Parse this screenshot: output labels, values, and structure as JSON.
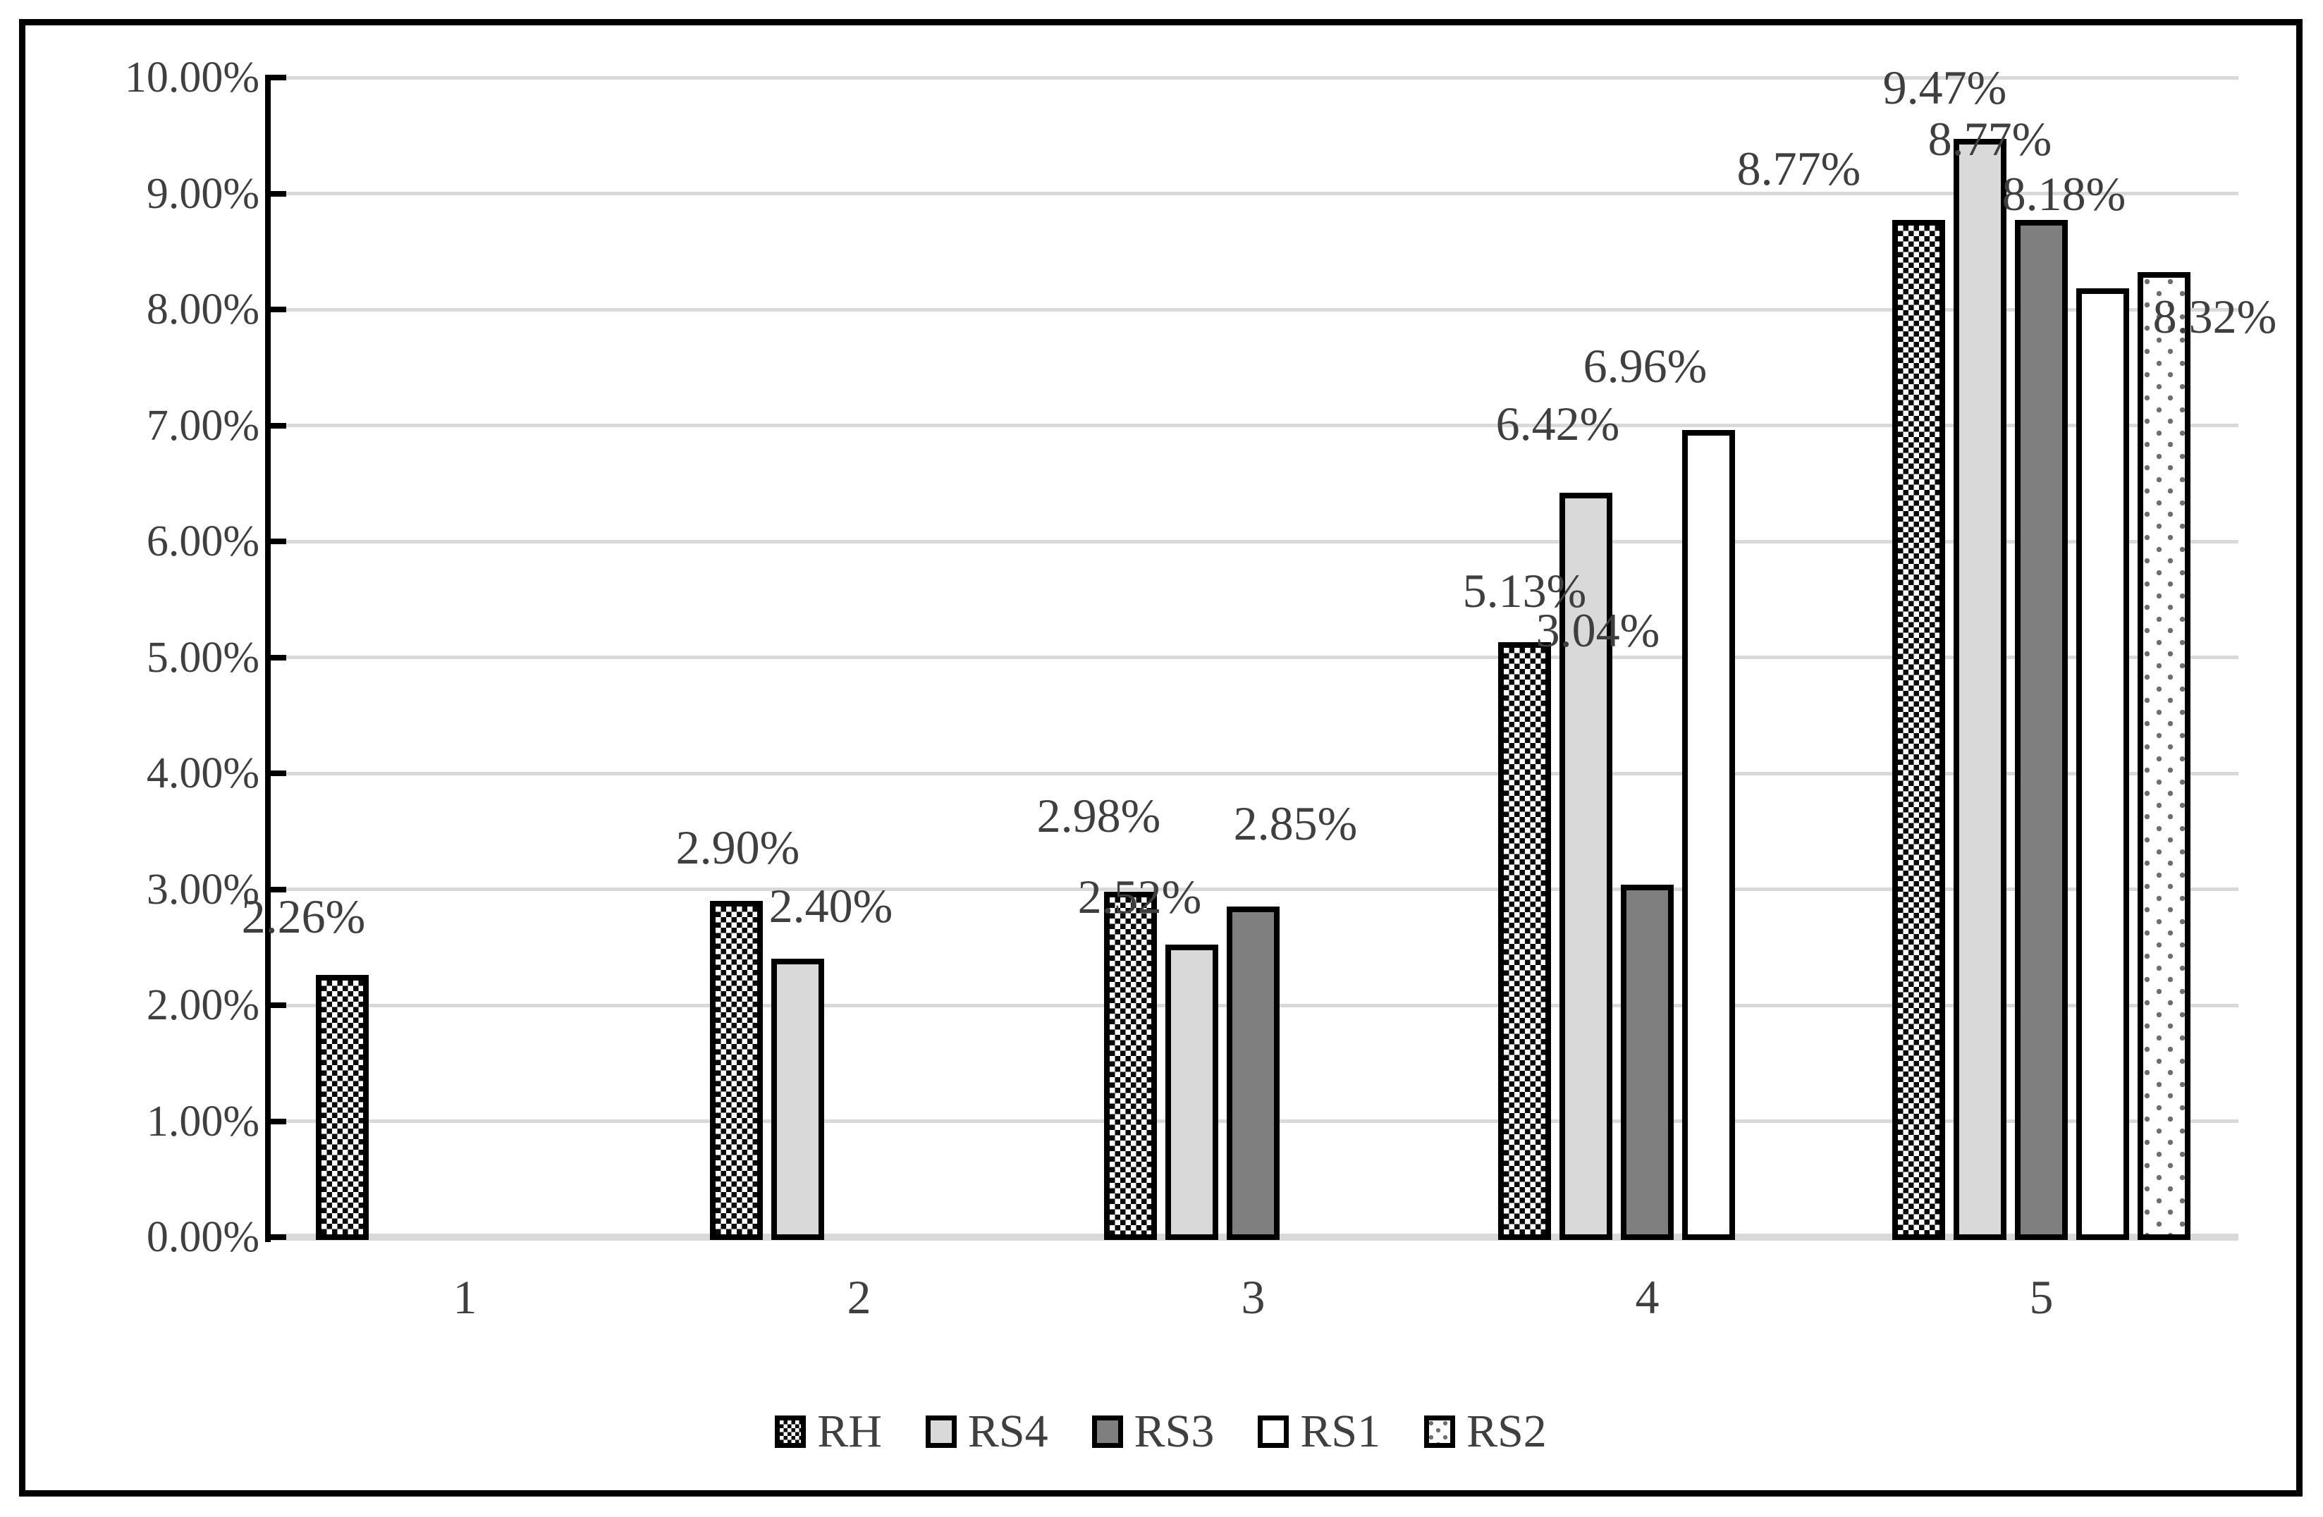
{
  "chart_data": {
    "type": "bar",
    "title": "",
    "xlabel": "",
    "ylabel": "",
    "categories": [
      "1",
      "2",
      "3",
      "4",
      "5"
    ],
    "series": [
      {
        "name": "RH",
        "pattern": "checker",
        "values": [
          2.26,
          2.9,
          2.98,
          5.13,
          8.77
        ],
        "labels": [
          "2.26%",
          "2.90%",
          "2.98%",
          "5.13%",
          "8.77%"
        ]
      },
      {
        "name": "RS4",
        "pattern": "rs4",
        "values": [
          null,
          2.4,
          2.52,
          6.42,
          9.47
        ],
        "labels": [
          null,
          "2.40%",
          "2.52%",
          "6.42%",
          "9.47%"
        ]
      },
      {
        "name": "RS3",
        "pattern": "rs3",
        "values": [
          null,
          null,
          2.85,
          3.04,
          8.77
        ],
        "labels": [
          null,
          null,
          "2.85%",
          "3.04%",
          "8.77%"
        ]
      },
      {
        "name": "RS1",
        "pattern": "rs1",
        "values": [
          null,
          null,
          null,
          6.96,
          8.18
        ],
        "labels": [
          null,
          null,
          null,
          "6.96%",
          "8.18%"
        ]
      },
      {
        "name": "RS2",
        "pattern": "dots",
        "values": [
          null,
          null,
          null,
          null,
          8.32
        ],
        "labels": [
          null,
          null,
          null,
          null,
          "8.32%"
        ]
      }
    ],
    "y_axis": {
      "min": 0,
      "max": 10,
      "tick_labels": [
        "0.00%",
        "1.00%",
        "2.00%",
        "3.00%",
        "4.00%",
        "5.00%",
        "6.00%",
        "7.00%",
        "8.00%",
        "9.00%",
        "10.00%"
      ],
      "grid": true
    },
    "legend": {
      "position": "bottom",
      "entries": [
        "RH",
        "RS4",
        "RS3",
        "RS1",
        "RS2"
      ]
    }
  },
  "colors": {
    "bar_border": "#000000",
    "series_rs4_fill": "#d9d9d9",
    "series_rs3_fill": "#7f7f7f",
    "series_rs1_fill": "#ffffff",
    "dot_fill": "#6e6e6e",
    "gridline": "#d9d9d9",
    "text": "#3f3f3f",
    "figure_border": "#000000"
  }
}
